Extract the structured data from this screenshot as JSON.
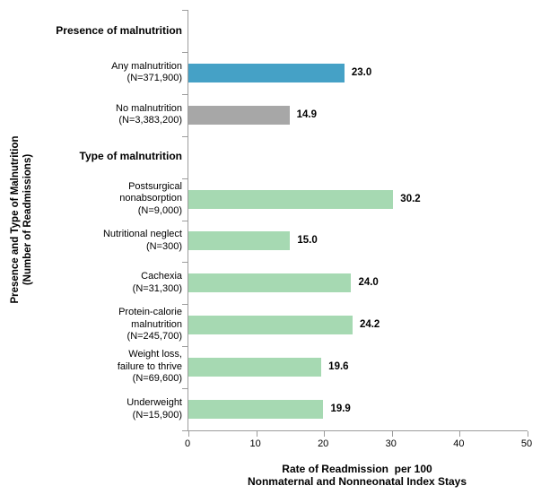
{
  "chart_data": {
    "type": "bar",
    "orientation": "horizontal",
    "xlabel": "Rate of Readmission  per 100\nNonmaternal and Nonneonatal Index Stays",
    "ylabel": "Presence and Type of Malnutrition\n(Number of Readmissions)",
    "xlim": [
      0,
      50
    ],
    "x_ticks": [
      0,
      10,
      20,
      30,
      40,
      50
    ],
    "grid": false,
    "legend": false,
    "axis_color": "#9C9C9C",
    "colors": {
      "any_malnutrition": "#45A1C6",
      "no_malnutrition": "#A7A7A7",
      "type_of_malnutrition": "#A6D9B2"
    },
    "rows": [
      {
        "kind": "header",
        "label": "Presence of malnutrition"
      },
      {
        "kind": "bar",
        "category": "Any malnutrition",
        "label": "Any malnutrition\n(N=371,900)",
        "value": 23.0,
        "value_label": "23.0",
        "color": "#45A1C6"
      },
      {
        "kind": "bar",
        "category": "No malnutrition",
        "label": "No malnutrition\n(N=3,383,200)",
        "value": 14.9,
        "value_label": "14.9",
        "color": "#A7A7A7"
      },
      {
        "kind": "header",
        "label": "Type of malnutrition"
      },
      {
        "kind": "bar",
        "category": "Postsurgical nonabsorption",
        "label": "Postsurgical\nnonabsorption\n(N=9,000)",
        "value": 30.2,
        "value_label": "30.2",
        "color": "#A6D9B2"
      },
      {
        "kind": "bar",
        "category": "Nutritional neglect",
        "label": "Nutritional neglect\n(N=300)",
        "value": 15.0,
        "value_label": "15.0",
        "color": "#A6D9B2"
      },
      {
        "kind": "bar",
        "category": "Cachexia",
        "label": "Cachexia\n(N=31,300)",
        "value": 24.0,
        "value_label": "24.0",
        "color": "#A6D9B2"
      },
      {
        "kind": "bar",
        "category": "Protein-calorie malnutrition",
        "label": "Protein-calorie\nmalnutrition\n(N=245,700)",
        "value": 24.2,
        "value_label": "24.2",
        "color": "#A6D9B2"
      },
      {
        "kind": "bar",
        "category": "Weight loss, failure to thrive",
        "label": "Weight loss,\nfailure to thrive\n(N=69,600)",
        "value": 19.6,
        "value_label": "19.6",
        "color": "#A6D9B2"
      },
      {
        "kind": "bar",
        "category": "Underweight",
        "label": "Underweight\n(N=15,900)",
        "value": 19.9,
        "value_label": "19.9",
        "color": "#A6D9B2"
      }
    ]
  }
}
